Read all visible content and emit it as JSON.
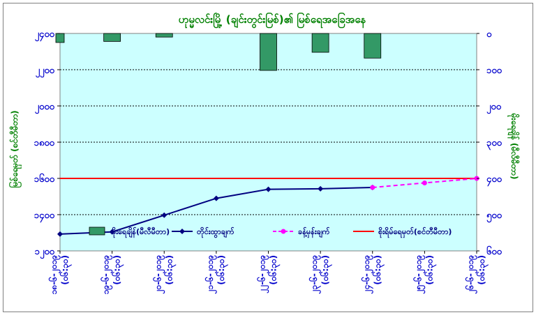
{
  "chart_data": {
    "type": "bar+line",
    "title": "ဟုမ္မလင်းမြို့ (ချင်းတွင်းမြစ်)၏ မြစ်ရေအခြေအနေ",
    "ylabel_left": "မြစ်ရေမှတ် (စင်တီမီတာ)",
    "ylabel_right": "မိုးရေချိန် (မီလီမီတာ)",
    "left_axis": {
      "min": 1200,
      "max": 2400,
      "ticks": [
        "၂၄၀၀",
        "၂၂၀၀",
        "၂၀၀၀",
        "၁၈၀၀",
        "၁၆၀၀",
        "၁၄၀၀",
        "၁၂၀၀"
      ]
    },
    "right_axis": {
      "min": 0,
      "max": 600,
      "reversed": true,
      "ticks": [
        "၀",
        "၁၀၀",
        "၂၀၀",
        "၃၀၀",
        "၄၀၀",
        "၅၀၀",
        "၆၀၀"
      ]
    },
    "grid": true,
    "plot_background": "#ccffff",
    "categories": [
      [
        "၁၈-၆-၂၀၁၉",
        "(၀၆:၃၀)"
      ],
      [
        "၁၉-၆-၂၀၁၉",
        "(၀၆:၃၀)"
      ],
      [
        "၂၀-၆-၂၀၁၉",
        "(၀၆:၃၀)"
      ],
      [
        "၂၁-၆-၂၀၁၉",
        "(၀၆:၃၀)"
      ],
      [
        "၂၂-၆-၂၀၁၉",
        "(၀၆:၃၀)"
      ],
      [
        "၂၃-၆-၂၀၁၉",
        "(၀၆:၃၀)"
      ],
      [
        "၂၄-၆-၂၀၁၉",
        "(၀၆:၃၀)"
      ],
      [
        "၂၅-၆-၂၀၁၉",
        "(၀၆:၃၀)"
      ],
      [
        "၂၆-၆-၂၀၁၉",
        "(၀၆:၃၀)"
      ]
    ],
    "series": [
      {
        "name": "မိုးရေချိန်(မီလီမီတာ)",
        "kind": "bar",
        "axis": "right",
        "color": "#339966",
        "values": [
          25,
          22,
          10,
          null,
          102,
          52,
          68,
          null,
          null
        ]
      },
      {
        "name": "တိုင်းထွာချက်",
        "kind": "line",
        "axis": "left",
        "color": "#000080",
        "values": [
          1293,
          1305,
          1397,
          1490,
          1540,
          1543,
          1550,
          null,
          null
        ]
      },
      {
        "name": "ခန့်မှန်းချက်",
        "kind": "dashed-line",
        "axis": "left",
        "color": "#ff00ff",
        "values": [
          null,
          null,
          null,
          null,
          null,
          null,
          1550,
          1575,
          1600
        ]
      },
      {
        "name": "စိုးရိမ်ရေမှတ်(စင်တီမီတာ)",
        "kind": "hline",
        "axis": "left",
        "color": "#ff0000",
        "value": 1600
      }
    ],
    "legend_position": "bottom-inside",
    "colors": {
      "axis_text": "#0000cc",
      "title": "#008000",
      "axis_title": "#008000"
    }
  }
}
